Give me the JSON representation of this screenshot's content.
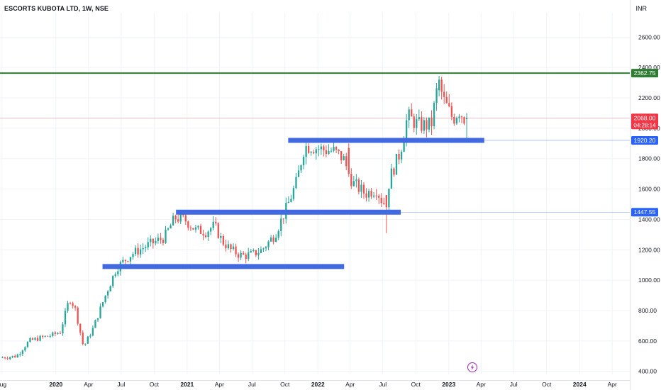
{
  "header": {
    "title": "ESCORTS KUBOTA LTD, 1W, NSE",
    "currency": "INR"
  },
  "colors": {
    "up": "#26a69a",
    "down": "#ef5350",
    "support_box": "#4169e1",
    "resistance_line": "#2e7d32",
    "last_price": "#f23645",
    "blue_tag": "#2962ff",
    "accent_icon": "#9c27b0"
  },
  "icons": {
    "flash": "lightning-icon"
  },
  "chart_data": {
    "type": "candlestick",
    "title": "ESCORTS KUBOTA LTD, 1W, NSE",
    "currency": "INR",
    "timeframe": "1W",
    "ylim": [
      380,
      2760
    ],
    "y_ticks": [
      "400.00",
      "600.00",
      "800.00",
      "1000.00",
      "1200.00",
      "1400.00",
      "1600.00",
      "1800.00",
      "2000.00",
      "2200.00",
      "2400.00",
      "2600.00"
    ],
    "x_ticks": [
      {
        "label": "Aug",
        "date": "2019-08-01"
      },
      {
        "label": "2020",
        "date": "2020-01-01",
        "bold": true
      },
      {
        "label": "Apr",
        "date": "2020-04-01"
      },
      {
        "label": "Jul",
        "date": "2020-07-01"
      },
      {
        "label": "Oct",
        "date": "2020-10-01"
      },
      {
        "label": "2021",
        "date": "2021-01-01",
        "bold": true
      },
      {
        "label": "Apr",
        "date": "2021-04-01"
      },
      {
        "label": "Jul",
        "date": "2021-07-01"
      },
      {
        "label": "Oct",
        "date": "2021-10-01"
      },
      {
        "label": "2022",
        "date": "2022-01-01",
        "bold": true
      },
      {
        "label": "Apr",
        "date": "2022-04-01"
      },
      {
        "label": "Jul",
        "date": "2022-07-01"
      },
      {
        "label": "Oct",
        "date": "2022-10-01"
      },
      {
        "label": "2023",
        "date": "2023-01-01",
        "bold": true
      },
      {
        "label": "Apr",
        "date": "2023-04-01"
      },
      {
        "label": "Jul",
        "date": "2023-07-01"
      },
      {
        "label": "Oct",
        "date": "2023-10-01"
      },
      {
        "label": "2024",
        "date": "2024-01-01",
        "bold": true
      },
      {
        "label": "Apr",
        "date": "2024-04-01"
      }
    ],
    "x_range": [
      "2019-07-29",
      "2024-05-20"
    ],
    "anchors": [
      [
        "2019-08-05",
        490
      ],
      [
        "2019-09-20",
        500
      ],
      [
        "2019-10-25",
        600
      ],
      [
        "2019-11-25",
        620
      ],
      [
        "2019-12-30",
        640
      ],
      [
        "2020-01-20",
        660
      ],
      [
        "2020-02-15",
        880
      ],
      [
        "2020-03-01",
        820
      ],
      [
        "2020-03-25",
        560
      ],
      [
        "2020-04-20",
        680
      ],
      [
        "2020-05-25",
        900
      ],
      [
        "2020-06-25",
        1080
      ],
      [
        "2020-08-05",
        1170
      ],
      [
        "2020-09-20",
        1230
      ],
      [
        "2020-11-05",
        1280
      ],
      [
        "2020-12-05",
        1410
      ],
      [
        "2021-01-01",
        1400
      ],
      [
        "2021-02-01",
        1330
      ],
      [
        "2021-03-01",
        1320
      ],
      [
        "2021-03-25",
        1360
      ],
      [
        "2021-04-15",
        1260
      ],
      [
        "2021-05-10",
        1200
      ],
      [
        "2021-06-10",
        1160
      ],
      [
        "2021-07-10",
        1170
      ],
      [
        "2021-08-05",
        1200
      ],
      [
        "2021-09-10",
        1300
      ],
      [
        "2021-10-15",
        1490
      ],
      [
        "2021-11-10",
        1650
      ],
      [
        "2021-12-01",
        1880
      ],
      [
        "2021-12-20",
        1880
      ],
      [
        "2022-01-20",
        1860
      ],
      [
        "2022-02-20",
        1850
      ],
      [
        "2022-03-20",
        1800
      ],
      [
        "2022-04-15",
        1640
      ],
      [
        "2022-05-20",
        1570
      ],
      [
        "2022-06-20",
        1600
      ],
      [
        "2022-07-10",
        1500
      ],
      [
        "2022-08-01",
        1700
      ],
      [
        "2022-08-25",
        1840
      ],
      [
        "2022-09-15",
        2080
      ],
      [
        "2022-10-15",
        2020
      ],
      [
        "2022-11-20",
        2020
      ],
      [
        "2022-12-10",
        2310
      ],
      [
        "2022-12-25",
        2180
      ],
      [
        "2023-01-20",
        2060
      ],
      [
        "2023-02-05",
        2120
      ],
      [
        "2023-02-20",
        2068
      ]
    ],
    "key_candles": [
      {
        "date": "2022-07-11",
        "open": 1560,
        "high": 1560,
        "low": 1310,
        "close": 1480
      },
      {
        "date": "2022-03-28",
        "open": 1870,
        "high": 1900,
        "low": 1680,
        "close": 1700
      },
      {
        "date": "2022-12-05",
        "open": 2250,
        "high": 2345,
        "low": 2210,
        "close": 2320
      },
      {
        "date": "2023-02-20",
        "open": 2060,
        "high": 2100,
        "low": 1920,
        "close": 2068
      }
    ],
    "levels": [
      {
        "name": "resistance",
        "price": 2362.75,
        "label": "2362.75",
        "style": "line",
        "start": "2019-07-29"
      },
      {
        "name": "support-1920",
        "price": 1920.2,
        "label": "1920.20",
        "style": "band",
        "start": "2021-10-10",
        "end": "2023-04-10"
      },
      {
        "name": "support-1447",
        "price": 1447.55,
        "label": "1447.55",
        "style": "band",
        "start": "2020-12-01",
        "end": "2022-08-20"
      },
      {
        "name": "support-1090",
        "price": 1090,
        "style": "band",
        "start": "2020-05-10",
        "end": "2022-03-15"
      }
    ],
    "last_price": {
      "value": 2068.0,
      "label": "2068.00",
      "countdown": "04:28:14"
    }
  }
}
